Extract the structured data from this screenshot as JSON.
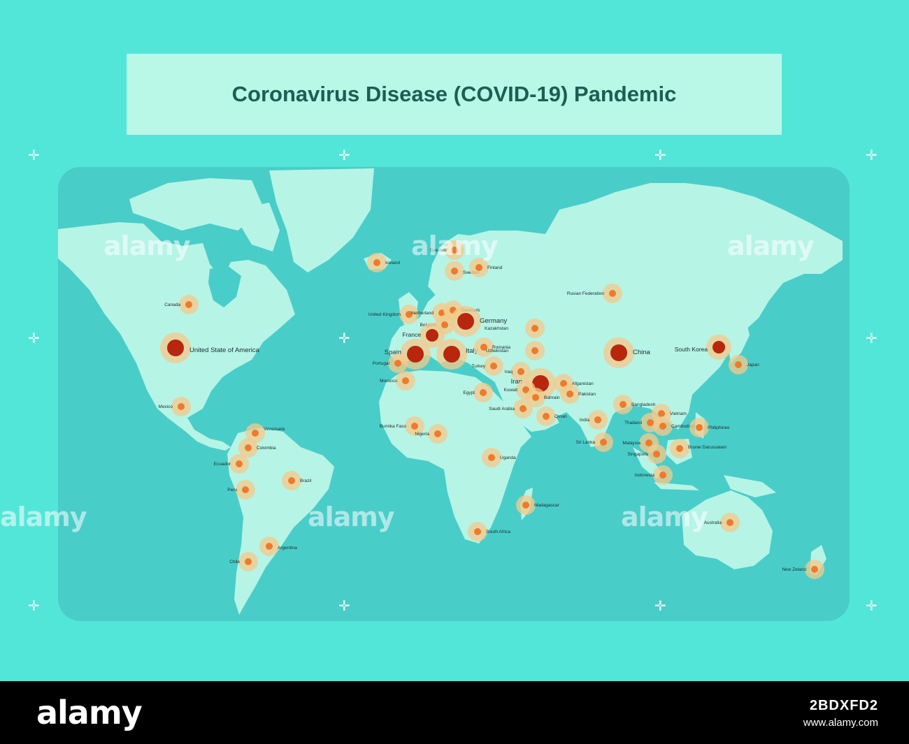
{
  "title": "Coronavirus Disease (COVID-19) Pandemic",
  "colors": {
    "background": "#52e6d8",
    "ocean": "#49cdc9",
    "land": "#b6f4e6",
    "title_box": "#b9f7e7",
    "title_text": "#1d5e52",
    "halo": "#f4c98a",
    "dot_small": "#f07a2a",
    "dot_large": "#b8260e"
  },
  "watermark": {
    "text": "alamy"
  },
  "footer": {
    "logo": "alamy",
    "image_id": "2BDXFD2",
    "url": "www.alamy.com"
  },
  "hotspots": [
    {
      "label": "United State of America",
      "size": "large"
    },
    {
      "label": "Canada",
      "size": "small"
    },
    {
      "label": "Mexico",
      "size": "small"
    },
    {
      "label": "Venezuela",
      "size": "small"
    },
    {
      "label": "Colombia",
      "size": "small"
    },
    {
      "label": "Ecuador",
      "size": "small"
    },
    {
      "label": "Peru",
      "size": "small"
    },
    {
      "label": "Brazil",
      "size": "small"
    },
    {
      "label": "Argentina",
      "size": "small"
    },
    {
      "label": "Chile",
      "size": "small"
    },
    {
      "label": "Iceland",
      "size": "small"
    },
    {
      "label": "Sweden",
      "size": "small"
    },
    {
      "label": "Sweden",
      "size": "small"
    },
    {
      "label": "Finland",
      "size": "small"
    },
    {
      "label": "United Kingdom",
      "size": "small"
    },
    {
      "label": "Netherland",
      "size": "small"
    },
    {
      "label": "Denmark",
      "size": "small"
    },
    {
      "label": "Belgium",
      "size": "small"
    },
    {
      "label": "Germany",
      "size": "large"
    },
    {
      "label": "France",
      "size": "medium"
    },
    {
      "label": "Spain",
      "size": "large"
    },
    {
      "label": "Italy",
      "size": "large"
    },
    {
      "label": "Portugal",
      "size": "small"
    },
    {
      "label": "Romania",
      "size": "small"
    },
    {
      "label": "Morocco",
      "size": "small"
    },
    {
      "label": "Turkey",
      "size": "small"
    },
    {
      "label": "Kazakhstan",
      "size": "small"
    },
    {
      "label": "Uzbekistan",
      "size": "small"
    },
    {
      "label": "Rusian Federation",
      "size": "small"
    },
    {
      "label": "China",
      "size": "large"
    },
    {
      "label": "South Korea",
      "size": "medium"
    },
    {
      "label": "Japan",
      "size": "small"
    },
    {
      "label": "Iraq",
      "size": "small"
    },
    {
      "label": "Iran",
      "size": "large"
    },
    {
      "label": "Kuwait",
      "size": "small"
    },
    {
      "label": "Afganistan",
      "size": "small"
    },
    {
      "label": "Pakistan",
      "size": "small"
    },
    {
      "label": "Egypt",
      "size": "small"
    },
    {
      "label": "Saudi Arabia",
      "size": "small"
    },
    {
      "label": "Bahrain",
      "size": "small"
    },
    {
      "label": "Oman",
      "size": "small"
    },
    {
      "label": "India",
      "size": "small"
    },
    {
      "label": "Sri Lanka",
      "size": "small"
    },
    {
      "label": "Bangladesh",
      "size": "small"
    },
    {
      "label": "Vietnam",
      "size": "small"
    },
    {
      "label": "Thailand",
      "size": "small"
    },
    {
      "label": "Cambodian",
      "size": "small"
    },
    {
      "label": "Philiphines",
      "size": "small"
    },
    {
      "label": "Malaysia",
      "size": "small"
    },
    {
      "label": "Brunei Darussalam",
      "size": "small"
    },
    {
      "label": "Singapura",
      "size": "small"
    },
    {
      "label": "Indonesia",
      "size": "small"
    },
    {
      "label": "Burnika Faso",
      "size": "small"
    },
    {
      "label": "Nigeria",
      "size": "small"
    },
    {
      "label": "Uganda",
      "size": "small"
    },
    {
      "label": "Madagascar",
      "size": "small"
    },
    {
      "label": "South Africa",
      "size": "small"
    },
    {
      "label": "Australia",
      "size": "small"
    },
    {
      "label": "New Zeland",
      "size": "small"
    }
  ]
}
